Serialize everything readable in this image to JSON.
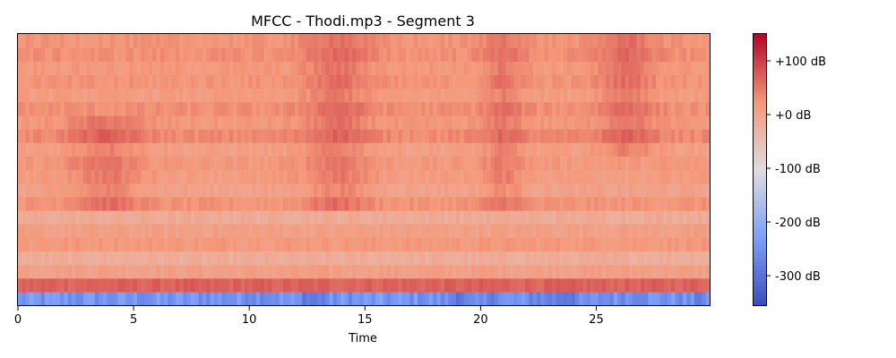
{
  "chart_data": {
    "type": "heatmap",
    "title": "MFCC - Thodi.mp3 - Segment 3",
    "xlabel": "Time",
    "ylabel": "",
    "xlim": [
      0,
      29.9
    ],
    "x_ticks": [
      0,
      5,
      10,
      15,
      20,
      25
    ],
    "x_tick_labels": [
      "0",
      "5",
      "10",
      "15",
      "20",
      "25"
    ],
    "n_coefficients": 20,
    "n_frames": 180,
    "colormap": "coolwarm",
    "colorbar": {
      "vmin": -355,
      "vmax": 150,
      "ticks": [
        100,
        0,
        -100,
        -200,
        -300
      ],
      "tick_labels": [
        "+100 dB",
        "+0 dB",
        "-100 dB",
        "-200 dB",
        "-300 dB"
      ]
    },
    "row_means_db": [
      -245,
      70,
      10,
      -15,
      20,
      10,
      -10,
      25,
      5,
      15,
      20,
      10,
      35,
      20,
      30,
      15,
      25,
      20,
      30,
      25
    ],
    "bright_bands": [
      {
        "center": 3.8,
        "width": 1.6,
        "from_row": 7,
        "to_row": 13,
        "strength": 35
      },
      {
        "center": 13.8,
        "width": 1.4,
        "from_row": 7,
        "to_row": 19,
        "strength": 35
      },
      {
        "center": 21.0,
        "width": 0.9,
        "from_row": 7,
        "to_row": 19,
        "strength": 30
      },
      {
        "center": 26.3,
        "width": 1.2,
        "from_row": 11,
        "to_row": 19,
        "strength": 35
      }
    ],
    "dark_spots_row0": [
      {
        "center": 12.8,
        "width": 0.6,
        "strength": -40
      },
      {
        "center": 19.5,
        "width": 1.0,
        "strength": -35
      },
      {
        "center": 23.5,
        "width": 1.5,
        "strength": -30
      },
      {
        "center": 29.5,
        "width": 0.6,
        "strength": -25
      }
    ]
  }
}
